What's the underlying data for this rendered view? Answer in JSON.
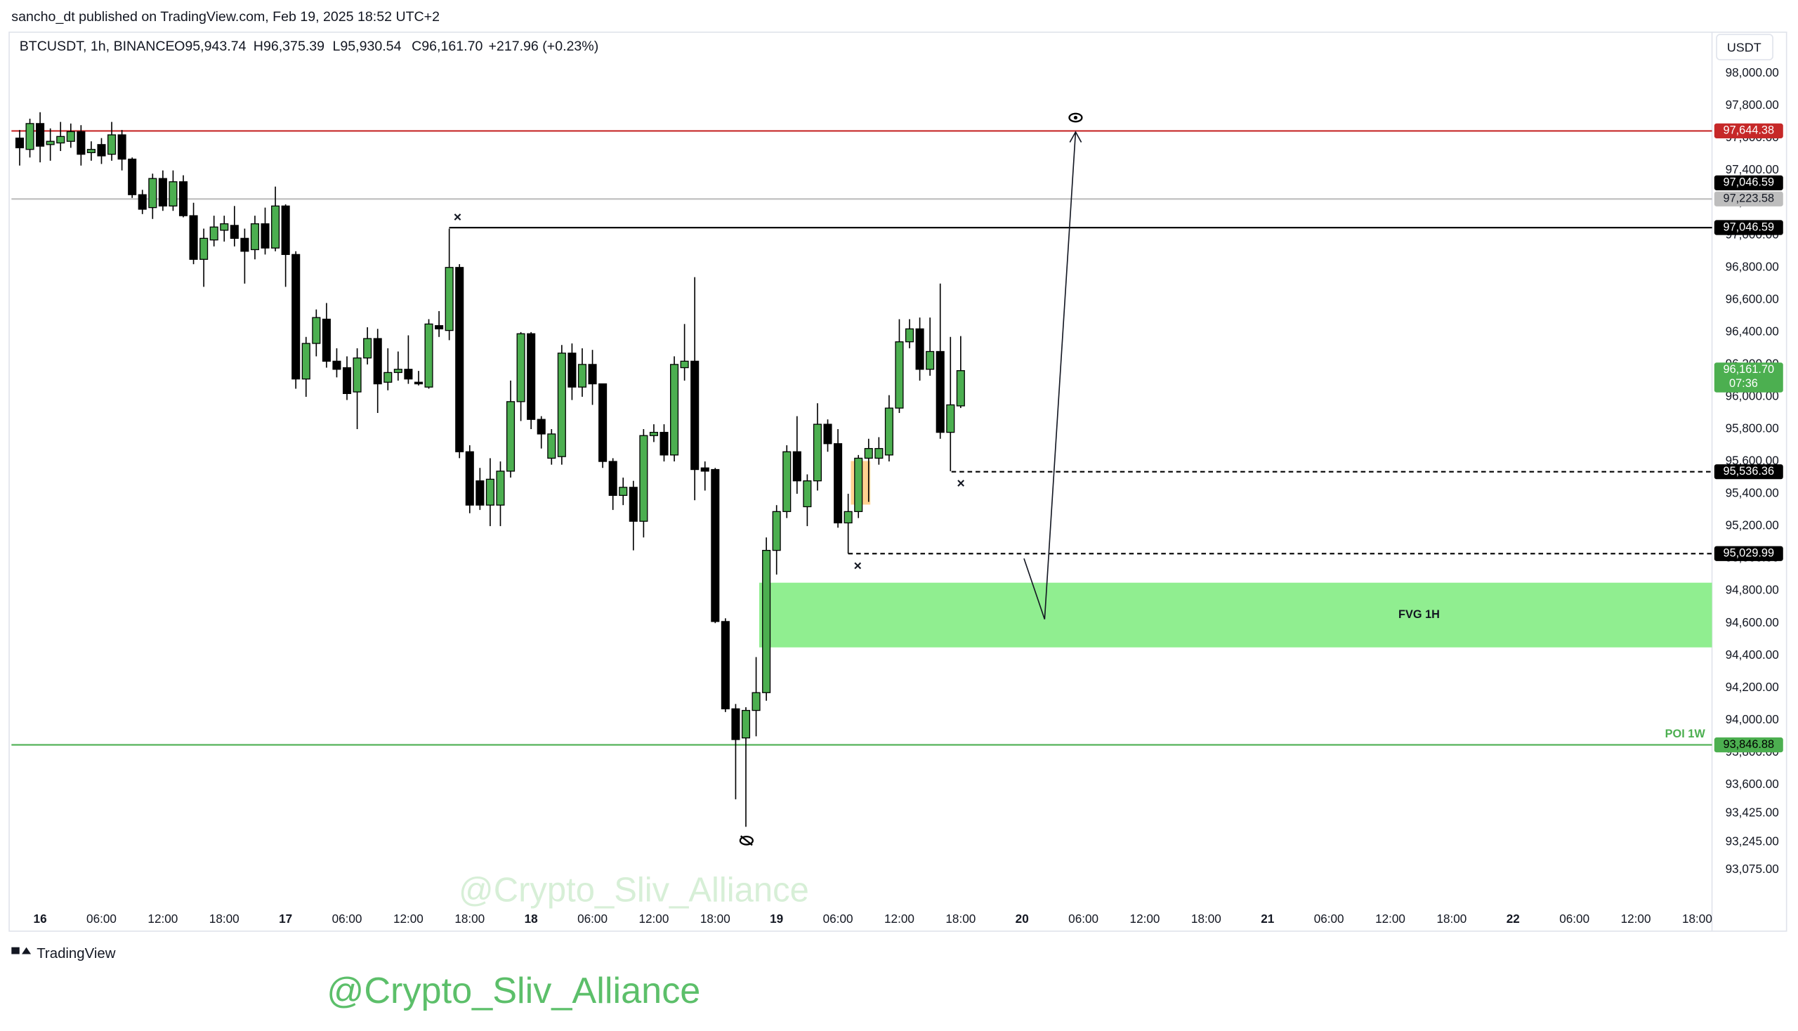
{
  "header": {
    "published": "sancho_dt published on TradingView.com, Feb 19, 2025 18:52 UTC+2",
    "symbol": "BTCUSDT, 1h, BINANCE",
    "ohlc_text": [
      "O95,943.74",
      "H96,375.39",
      "L95,930.54",
      "C96,161.70",
      "+217.96 (+0.23%)"
    ]
  },
  "chart_data": {
    "type": "candlestick",
    "currency": "USDT",
    "x": [
      -2,
      -1,
      0,
      1,
      2,
      3,
      4,
      5,
      6,
      7,
      8,
      9,
      10,
      11,
      12,
      13,
      14,
      15,
      16,
      17,
      18,
      19,
      20,
      21,
      22,
      23,
      24,
      25,
      26,
      27,
      28,
      29,
      30,
      31,
      32,
      33,
      34,
      35,
      36,
      37,
      38,
      39,
      40,
      41,
      42,
      43,
      44,
      45,
      46,
      47,
      48,
      49,
      50,
      51,
      52,
      53,
      54,
      55,
      56,
      57,
      58,
      59,
      60,
      61,
      62,
      63,
      64,
      65,
      66,
      67,
      68,
      69,
      70,
      71,
      72,
      73,
      74,
      75,
      76,
      77,
      78,
      79,
      80,
      81,
      82,
      83,
      84,
      85,
      86,
      87,
      88,
      89,
      90
    ],
    "open": [
      97600,
      97530,
      97690,
      97560,
      97570,
      97580,
      97640,
      97510,
      97560,
      97500,
      97620,
      97470,
      97250,
      97170,
      97350,
      97180,
      97330,
      97120,
      96850,
      96970,
      97030,
      97060,
      96980,
      96910,
      97070,
      96920,
      97180,
      96880,
      96110,
      96330,
      96480,
      96220,
      96180,
      96030,
      96240,
      96360,
      96090,
      96150,
      96170,
      96090,
      96060,
      96440,
      96410,
      96800,
      95660,
      95480,
      95330,
      95330,
      95540,
      95970,
      96390,
      95860,
      95620,
      95630,
      96270,
      96060,
      96200,
      96080,
      95600,
      95390,
      95440,
      95230,
      95760,
      95780,
      95640,
      96180,
      96220,
      95560,
      95550,
      94610,
      94070,
      93890,
      94060,
      94170,
      95050,
      95290,
      95660,
      95320,
      95480,
      95830,
      95710,
      95220,
      95290,
      95620,
      95620,
      95640,
      95930,
      96340,
      96420,
      96170,
      96280,
      95780,
      95943.74
    ],
    "high": [
      97650,
      97720,
      97760,
      97660,
      97700,
      97690,
      97680,
      97580,
      97600,
      97700,
      97650,
      97480,
      97280,
      97380,
      97400,
      97400,
      97370,
      97200,
      97040,
      97120,
      97120,
      97180,
      97040,
      97120,
      97170,
      97300,
      97190,
      96900,
      96370,
      96540,
      96580,
      96300,
      96250,
      96300,
      96430,
      96420,
      96300,
      96280,
      96380,
      96160,
      96480,
      96530,
      97040,
      96820,
      95700,
      95560,
      95620,
      95600,
      96100,
      96400,
      96400,
      95880,
      95800,
      96320,
      96330,
      96300,
      96290,
      96080,
      95620,
      95500,
      95480,
      95800,
      95830,
      95830,
      96250,
      96450,
      96740,
      95600,
      95560,
      94630,
      94100,
      94080,
      94390,
      95130,
      95330,
      95700,
      95880,
      95520,
      95960,
      95860,
      95800,
      95400,
      95640,
      95740,
      95750,
      96010,
      96480,
      96480,
      96490,
      96490,
      96700,
      96370,
      96375.39
    ],
    "low": [
      97430,
      97480,
      97450,
      97460,
      97520,
      97540,
      97430,
      97460,
      97440,
      97460,
      97400,
      97230,
      97130,
      97100,
      97150,
      97150,
      97110,
      96820,
      96680,
      96930,
      96960,
      96930,
      96700,
      96850,
      96880,
      96900,
      96680,
      96050,
      96000,
      96250,
      96180,
      96120,
      95980,
      95800,
      96200,
      95900,
      96040,
      96100,
      96080,
      96070,
      96050,
      96370,
      96350,
      95620,
      95280,
      95300,
      95200,
      95200,
      95500,
      95850,
      95800,
      95680,
      95580,
      95580,
      95980,
      96000,
      95950,
      95560,
      95300,
      95330,
      95050,
      95130,
      95720,
      95600,
      95600,
      96100,
      95360,
      95420,
      94600,
      94050,
      93510,
      93340,
      93900,
      94120,
      94900,
      95250,
      95400,
      95200,
      95420,
      95660,
      95190,
      95030,
      95250,
      95350,
      95580,
      95600,
      95900,
      96300,
      96100,
      96130,
      95740,
      95540,
      95930.54
    ],
    "close": [
      97540,
      97690,
      97550,
      97580,
      97610,
      97640,
      97500,
      97530,
      97490,
      97620,
      97470,
      97250,
      97160,
      97350,
      97180,
      97330,
      97120,
      96850,
      96980,
      97050,
      97070,
      96980,
      96900,
      97070,
      96920,
      97180,
      96880,
      96110,
      96330,
      96490,
      96220,
      96170,
      96020,
      96240,
      96360,
      96080,
      96150,
      96170,
      96110,
      96080,
      96450,
      96420,
      96800,
      95660,
      95330,
      95330,
      95490,
      95540,
      95970,
      96390,
      95860,
      95770,
      95770,
      96270,
      96060,
      96200,
      96080,
      95600,
      95390,
      95440,
      95230,
      95760,
      95780,
      95640,
      96200,
      96220,
      95550,
      95540,
      94610,
      94070,
      93880,
      94060,
      94170,
      95050,
      95290,
      95660,
      95480,
      95480,
      95830,
      95710,
      95220,
      95290,
      95620,
      95680,
      95680,
      95930,
      96340,
      96420,
      96170,
      96280,
      95780,
      95950,
      96161.7
    ],
    "up_color": "#4caf50",
    "down_color": "#000000",
    "xlim": [
      -2.8,
      163.45
    ],
    "xticks": [
      {
        "value": 0,
        "label": "16"
      },
      {
        "value": 6,
        "label": "06:00"
      },
      {
        "value": 12,
        "label": "12:00"
      },
      {
        "value": 18,
        "label": "18:00"
      },
      {
        "value": 24,
        "label": "17"
      },
      {
        "value": 30,
        "label": "06:00"
      },
      {
        "value": 36,
        "label": "12:00"
      },
      {
        "value": 42,
        "label": "18:00"
      },
      {
        "value": 48,
        "label": "18"
      },
      {
        "value": 54,
        "label": "06:00"
      },
      {
        "value": 60,
        "label": "12:00"
      },
      {
        "value": 66,
        "label": "18:00"
      },
      {
        "value": 72,
        "label": "19"
      },
      {
        "value": 78,
        "label": "06:00"
      },
      {
        "value": 84,
        "label": "12:00"
      },
      {
        "value": 90,
        "label": "18:00"
      },
      {
        "value": 96,
        "label": "20"
      },
      {
        "value": 102,
        "label": "06:00"
      },
      {
        "value": 108,
        "label": "12:00"
      },
      {
        "value": 114,
        "label": "18:00"
      },
      {
        "value": 120,
        "label": "21"
      },
      {
        "value": 126,
        "label": "06:00"
      },
      {
        "value": 132,
        "label": "12:00"
      },
      {
        "value": 138,
        "label": "18:00"
      },
      {
        "value": 144,
        "label": "22"
      },
      {
        "value": 150,
        "label": "06:00"
      },
      {
        "value": 156,
        "label": "12:00"
      },
      {
        "value": 162,
        "label": "18:00"
      }
    ],
    "ylim": [
      92865,
      98255
    ],
    "yticks": [
      {
        "value": 98000,
        "label": "98,000.00"
      },
      {
        "value": 97800,
        "label": "97,800.00"
      },
      {
        "value": 97600,
        "label": "97,600.00"
      },
      {
        "value": 97400,
        "label": "97,400.00"
      },
      {
        "value": 97200,
        "label": "97,200.00"
      },
      {
        "value": 97000,
        "label": "97,000.00"
      },
      {
        "value": 96800,
        "label": "96,800.00"
      },
      {
        "value": 96600,
        "label": "96,600.00"
      },
      {
        "value": 96400,
        "label": "96,400.00"
      },
      {
        "value": 96200,
        "label": "96,200.00"
      },
      {
        "value": 96000,
        "label": "96,000.00"
      },
      {
        "value": 95800,
        "label": "95,800.00"
      },
      {
        "value": 95600,
        "label": "95,600.00"
      },
      {
        "value": 95400,
        "label": "95,400.00"
      },
      {
        "value": 95200,
        "label": "95,200.00"
      },
      {
        "value": 95000,
        "label": "95,000.00"
      },
      {
        "value": 94800,
        "label": "94,800.00"
      },
      {
        "value": 94600,
        "label": "94,600.00"
      },
      {
        "value": 94400,
        "label": "94,400.00"
      },
      {
        "value": 94200,
        "label": "94,200.00"
      },
      {
        "value": 94000,
        "label": "94,000.00"
      },
      {
        "value": 93800,
        "label": "93,800.00"
      },
      {
        "value": 93600,
        "label": "93,600.00"
      },
      {
        "value": 93425,
        "label": "93,425.00"
      },
      {
        "value": 93245,
        "label": "93,245.00"
      },
      {
        "value": 93075,
        "label": "93,075.00"
      }
    ],
    "levels": [
      {
        "value": 97644.38,
        "label": "97,644.38",
        "color": "#c62828",
        "text_color": "#ffffff",
        "style": "solid",
        "from_x": -2.8
      },
      {
        "value": 97223.58,
        "label": "97,223.58",
        "color": "#bdbdbd",
        "text_color": "#131722",
        "style": "solid",
        "from_x": -2.8
      },
      {
        "value": 97046.59,
        "label": "97,046.59",
        "color": "#000000",
        "text_color": "#ffffff",
        "style": "solid",
        "from_x": 40
      },
      {
        "value": 97046.59,
        "label": "97,046.59",
        "color": "#000000",
        "text_color": "#ffffff",
        "style": "solid",
        "from_x": 40
      },
      {
        "value": 95536.36,
        "label": "95,536.36",
        "color": "#000000",
        "text_color": "#ffffff",
        "style": "dashed",
        "from_x": 89.1
      },
      {
        "value": 95029.99,
        "label": "95,029.99",
        "color": "#000000",
        "text_color": "#ffffff",
        "style": "dashed",
        "from_x": 79
      },
      {
        "value": 93846.88,
        "label": "93,846.88",
        "color": "#4caf50",
        "text_color": "#000000",
        "style": "solid",
        "from_x": -2.8,
        "name": "POI 1W"
      },
      {
        "value": 96161.7,
        "label": "96,161.70",
        "color": "#4caf50",
        "text_color": "#ffffff",
        "style": "none",
        "from_x": 90,
        "countdown": "07:36"
      }
    ],
    "zones": [
      {
        "label": "FVG 1H",
        "from": 94450,
        "to": 94850,
        "from_x": 70.3,
        "color": "#90ee90"
      }
    ]
  },
  "footer": {
    "logo": "TradingView",
    "watermark": "@Crypto_Sliv_Alliance"
  }
}
